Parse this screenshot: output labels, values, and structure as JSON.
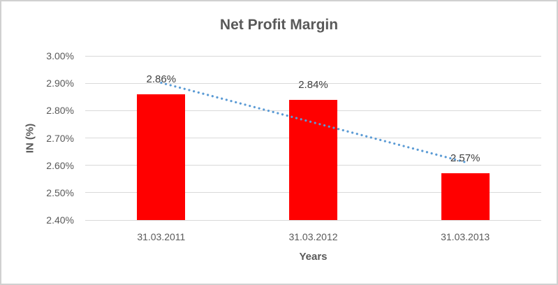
{
  "chart_data": {
    "type": "bar",
    "title": "Net Profit Margin",
    "xlabel": "Years",
    "ylabel": "IN (%)",
    "categories": [
      "31.03.2011",
      "31.03.2012",
      "31.03.2013"
    ],
    "values": [
      2.86,
      2.84,
      2.57
    ],
    "data_labels": [
      "2.86%",
      "2.84%",
      "2.57%"
    ],
    "ylim": [
      2.4,
      3.0
    ],
    "ytick_step": 0.1,
    "ytick_labels": [
      "2.40%",
      "2.50%",
      "2.60%",
      "2.70%",
      "2.80%",
      "2.90%",
      "3.00%"
    ],
    "grid": true,
    "legend": false,
    "trendline": {
      "type": "linear",
      "style": "dotted"
    },
    "colors": {
      "bar": "#ff0000",
      "trendline": "#5b9bd5",
      "gridline": "#d9d9d9",
      "tick_text": "#595959",
      "label_text": "#404040",
      "title_text": "#595959",
      "chart_border": "#d0d0d0"
    }
  }
}
